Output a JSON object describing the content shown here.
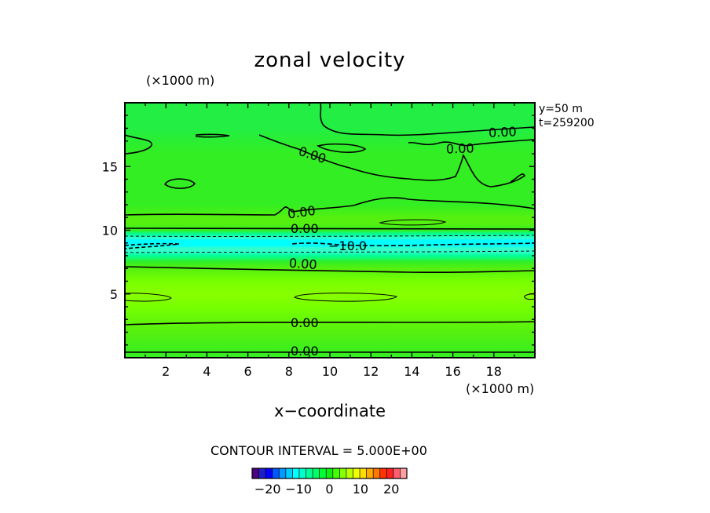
{
  "chart_data": {
    "type": "heatmap",
    "title": "zonal velocity",
    "xlabel": "x−coordinate",
    "x_unit": "(×1000 m)",
    "y_unit": "(×1000 m)",
    "xlim": [
      0,
      20
    ],
    "ylim": [
      0,
      20
    ],
    "x_ticks": [
      "2",
      "4",
      "6",
      "8",
      "10",
      "12",
      "14",
      "16",
      "18"
    ],
    "y_ticks": [
      "5",
      "10",
      "15"
    ],
    "annotations": [
      "y=50 m",
      "t=259200"
    ],
    "contour_interval_text": "CONTOUR INTERVAL = 5.000E+00",
    "contour_labels": [
      "0.00",
      "0.00",
      "0.00",
      "0.00",
      "0.00",
      "0.00",
      "0.00",
      "−10.0"
    ],
    "colorbar": {
      "range": [
        -25,
        25
      ],
      "tick_values": [
        -20,
        -10,
        0,
        10,
        20
      ],
      "tick_labels": [
        "−20",
        "−10",
        "0",
        "10",
        "20"
      ],
      "colors": [
        "#4b0082",
        "#1e1ec8",
        "#0000ff",
        "#0055ff",
        "#0099ff",
        "#00ccff",
        "#00ffff",
        "#00ffcc",
        "#00ff99",
        "#00ff66",
        "#00ff33",
        "#11ee11",
        "#44ff00",
        "#88ff00",
        "#bbff00",
        "#eeff00",
        "#ffdd00",
        "#ffaa00",
        "#ff7700",
        "#ff3300",
        "#ff2020",
        "#ff6070",
        "#ffa0a0"
      ]
    },
    "field_profile": {
      "y": [
        0,
        2,
        4,
        5,
        6,
        7,
        7.5,
        8,
        8.3,
        8.6,
        8.8,
        9.0,
        9.2,
        9.4,
        9.7,
        10,
        10.5,
        11,
        12,
        14,
        16,
        18,
        20
      ],
      "velocity": [
        1,
        2,
        3.5,
        4.5,
        3.5,
        1.5,
        0.5,
        -1.5,
        -4,
        -6.5,
        -8,
        -8.5,
        -7.5,
        -5,
        -2.5,
        0.5,
        2,
        1.5,
        1,
        0.5,
        0.5,
        0.3,
        0.2
      ]
    }
  }
}
